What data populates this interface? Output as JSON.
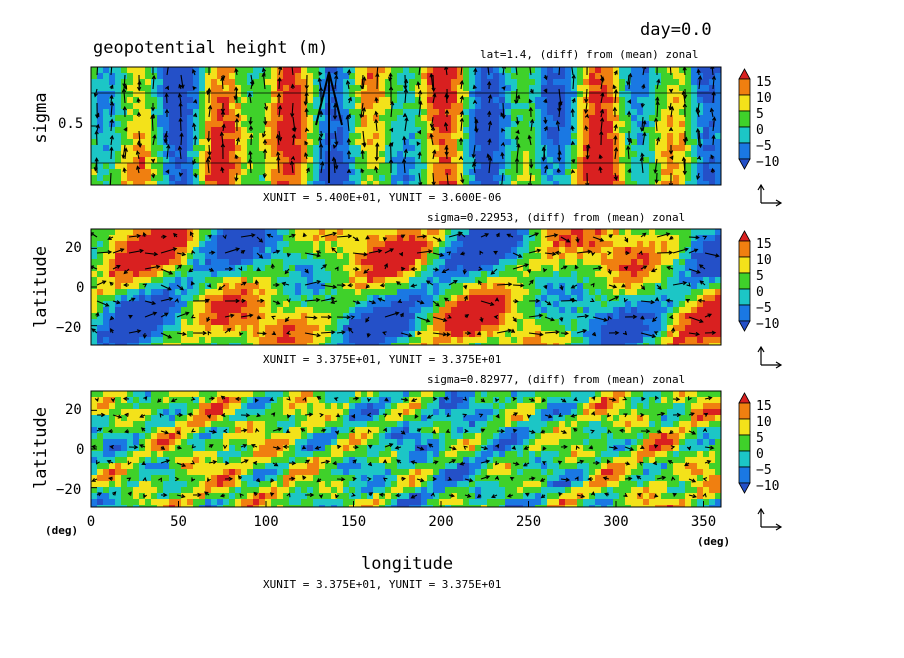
{
  "header": {
    "day_label": "day=0.0",
    "main_title": "geopotential height (m)"
  },
  "colorbar": {
    "levels": [
      "15",
      "10",
      "5",
      "0",
      "−5",
      "−10"
    ],
    "colors": [
      "#d92020",
      "#f07f10",
      "#f3e21a",
      "#3fd12a",
      "#1cc6c6",
      "#1a78e3",
      "#2450c8"
    ]
  },
  "chart_data": [
    {
      "type": "heatmap",
      "title": "lat=1.4, (diff) from (mean) zonal",
      "xlabel": "",
      "ylabel": "sigma",
      "y_ticks": [
        "0.5"
      ],
      "ylim": [
        0,
        1
      ],
      "unit_note": "XUNIT = 5.400E+01, YUNIT = 3.600E-06"
    },
    {
      "type": "heatmap",
      "title": "sigma=0.22953, (diff) from (mean) zonal",
      "xlabel": "",
      "ylabel": "latitude",
      "y_ticks": [
        "20",
        "0",
        "−20"
      ],
      "ylim": [
        -30,
        30
      ],
      "unit_note": "XUNIT = 3.375E+01, YUNIT = 3.375E+01"
    },
    {
      "type": "heatmap",
      "title": "sigma=0.82977, (diff) from (mean) zonal",
      "xlabel": "longitude",
      "ylabel": "latitude",
      "x_ticks": [
        "0",
        "50",
        "100",
        "150",
        "200",
        "250",
        "300",
        "350"
      ],
      "x_tick_values": [
        0,
        50,
        100,
        150,
        200,
        250,
        300,
        350
      ],
      "xlim": [
        0,
        360
      ],
      "y_ticks": [
        "20",
        "0",
        "−20"
      ],
      "ylim": [
        -30,
        30
      ],
      "unit_note": "XUNIT = 3.375E+01, YUNIT = 3.375E+01",
      "x_unit_label": "(deg)",
      "y_unit_label": "(deg)"
    }
  ]
}
